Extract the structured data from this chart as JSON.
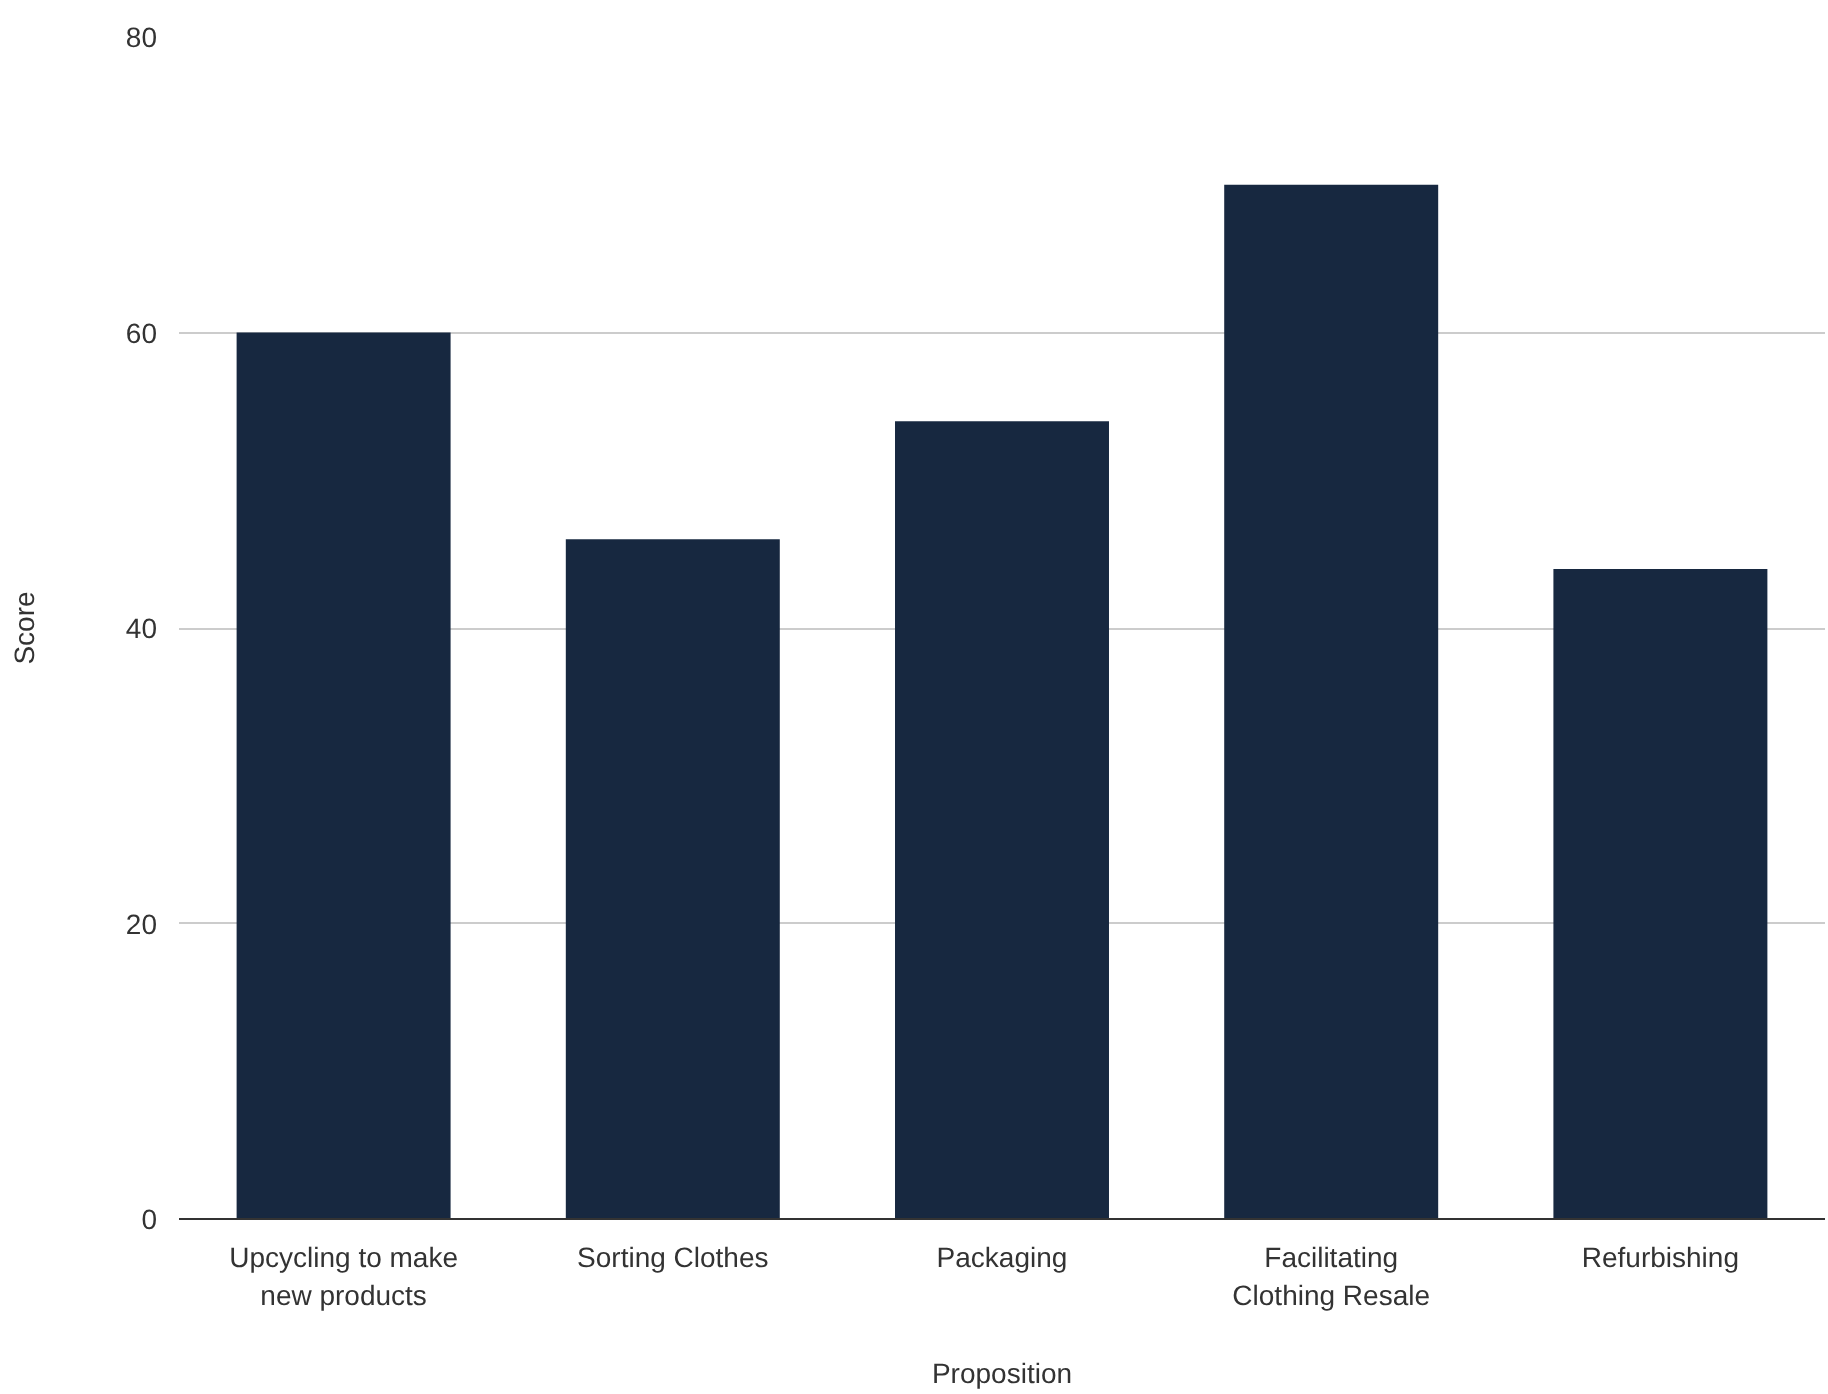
{
  "chart_data": {
    "type": "bar",
    "xlabel": "Proposition",
    "ylabel": "Score",
    "categories": [
      "Upcycling to make new products",
      "Sorting Clothes",
      "Packaging",
      "Facilitating Clothing Resale",
      "Refurbishing"
    ],
    "values": [
      60,
      46,
      54,
      70,
      44
    ],
    "color": "#172840",
    "ylim": [
      0,
      80
    ],
    "yticks": [
      0,
      20,
      40,
      60,
      80
    ],
    "grid": "y"
  }
}
